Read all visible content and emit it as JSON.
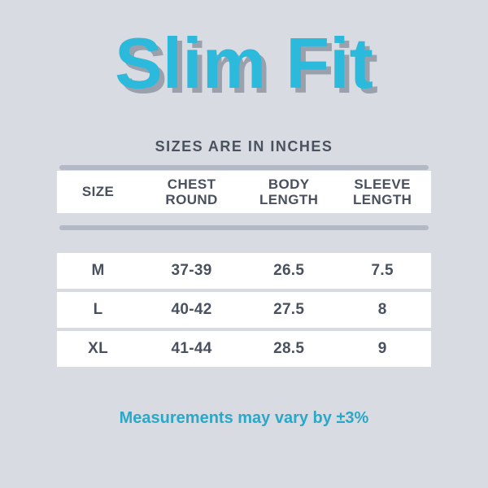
{
  "title": "Slim Fit",
  "subtitle": "SIZES ARE IN INCHES",
  "footer": "Measurements may vary by ±3%",
  "colors": {
    "background": "#d8dbe1",
    "title_cyan": "#2bb9dc",
    "title_shadow": "#9aa1ad",
    "table_text": "#49505e",
    "bar_gray": "#b2b9c5",
    "footer_teal": "#2aa8c9",
    "row_white": "#ffffff"
  },
  "table": {
    "columns": [
      "SIZE",
      "CHEST ROUND",
      "BODY LENGTH",
      "SLEEVE LENGTH"
    ],
    "rows": [
      {
        "size": "M",
        "chest": "37-39",
        "body": "26.5",
        "sleeve": "7.5"
      },
      {
        "size": "L",
        "chest": "40-42",
        "body": "27.5",
        "sleeve": "8"
      },
      {
        "size": "XL",
        "chest": "41-44",
        "body": "28.5",
        "sleeve": "9"
      }
    ]
  },
  "chart_data": {
    "type": "table",
    "title": "Slim Fit",
    "subtitle": "Sizes are in inches",
    "columns": [
      "Size",
      "Chest Round",
      "Body Length",
      "Sleeve Length"
    ],
    "rows": [
      [
        "M",
        "37-39",
        26.5,
        7.5
      ],
      [
        "L",
        "40-42",
        27.5,
        8
      ],
      [
        "XL",
        "41-44",
        28.5,
        9
      ]
    ],
    "units": "inches",
    "note": "Measurements may vary by ±3%"
  }
}
